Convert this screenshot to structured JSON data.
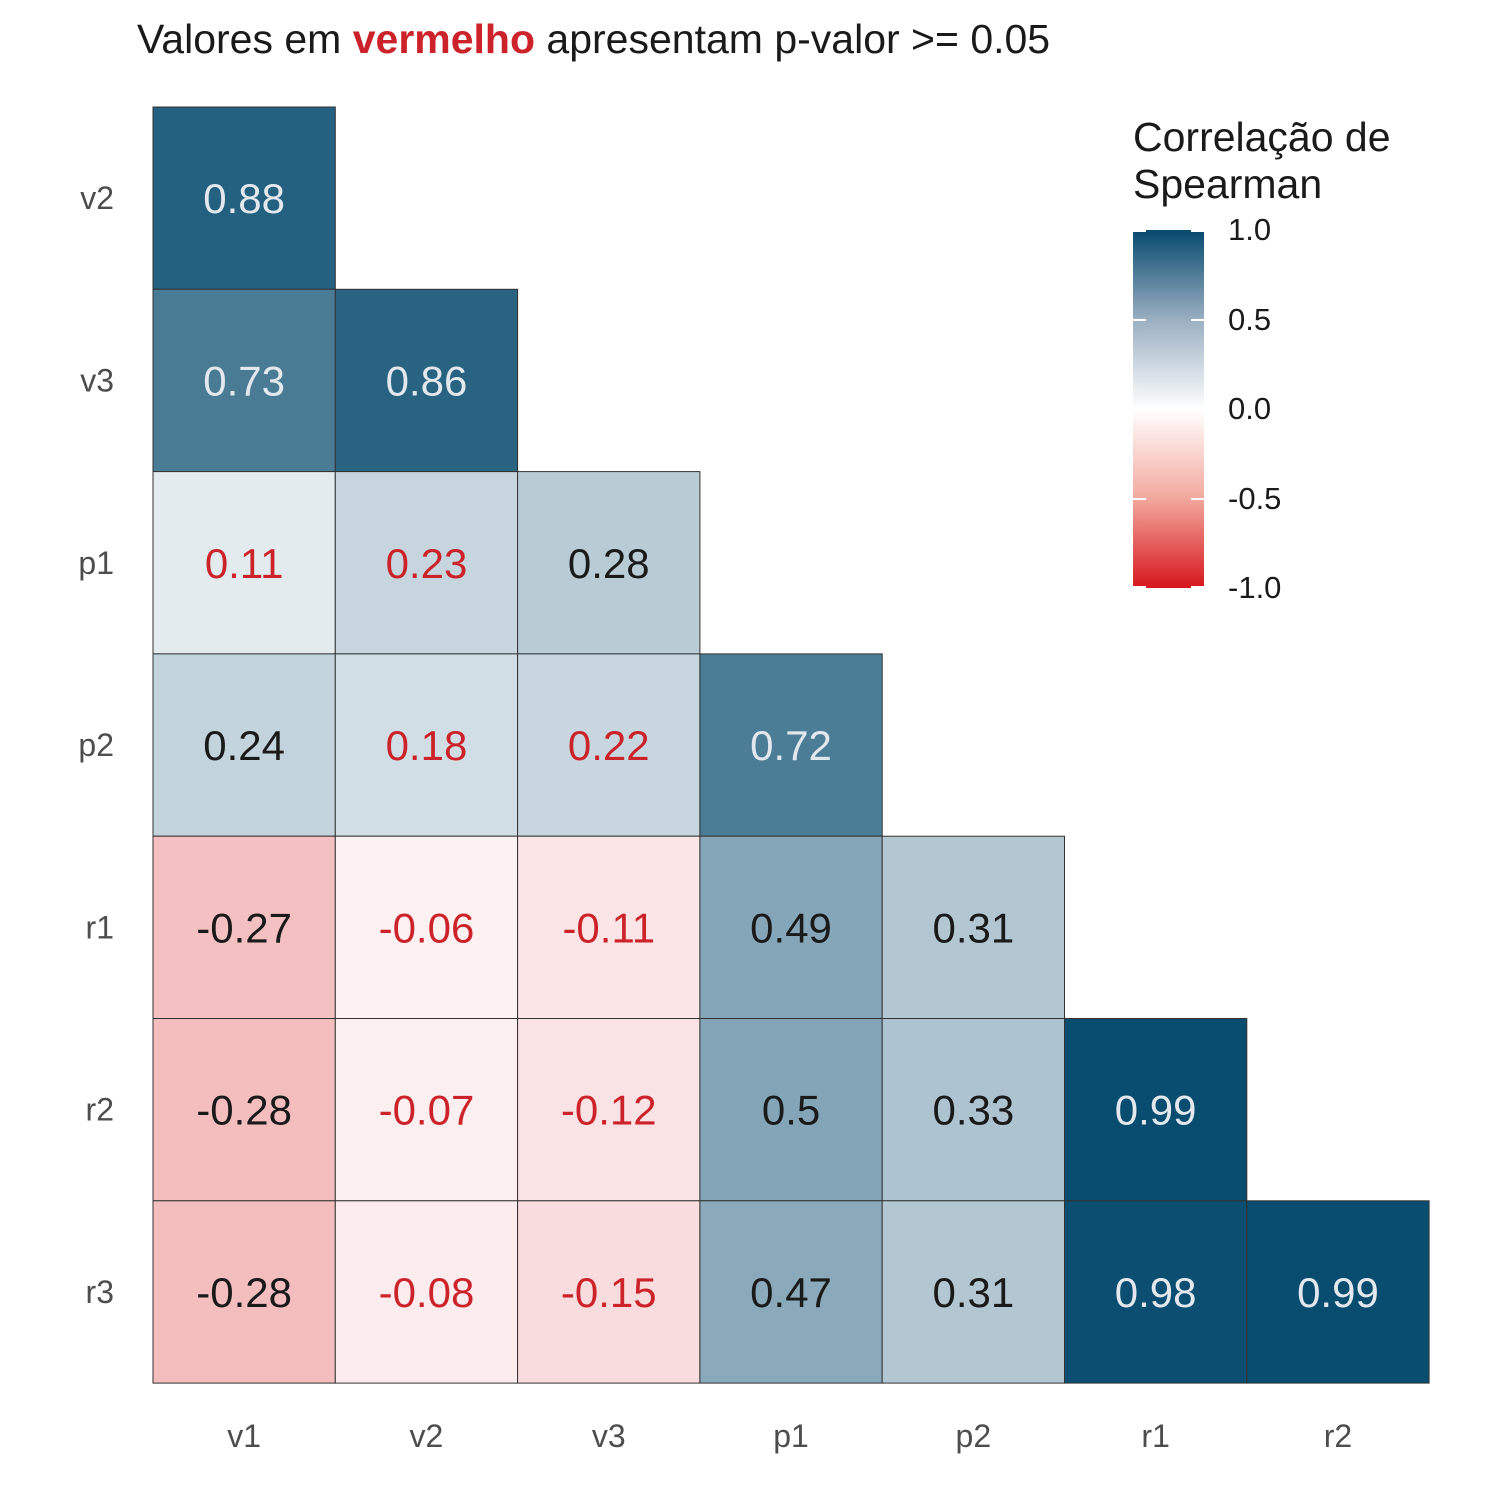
{
  "title": {
    "prefix": "Valores em ",
    "highlight": "vermelho",
    "suffix": " apresentam p-valor >= 0.05"
  },
  "colors": {
    "positive_max": "#064a6e",
    "zero": "#ffffff",
    "negative_max": "#d7161c",
    "nonsignificant_text": "#cc2229",
    "dark_text": "#1a1a1a",
    "light_text": "#e3e8ee",
    "axis_text": "#4d4d4d",
    "cell_border": "#333333"
  },
  "legend": {
    "title_line1": "Correlação de",
    "title_line2": "Spearman",
    "ticks": [
      "1.0",
      "0.5",
      "0.0",
      "-0.5",
      "-1.0"
    ],
    "tick_values": [
      1.0,
      0.5,
      0.0,
      -0.5,
      -1.0
    ],
    "limits": [
      -1,
      1
    ]
  },
  "chart_data": {
    "type": "heatmap",
    "title": "Valores em vermelho apresentam p-valor >= 0.05",
    "x_labels": [
      "v1",
      "v2",
      "v3",
      "p1",
      "p2",
      "r1",
      "r2"
    ],
    "y_labels": [
      "v2",
      "v3",
      "p1",
      "p2",
      "r1",
      "r2",
      "r3"
    ],
    "legend_title": "Correlação de Spearman",
    "legend_placement": "top-right",
    "grid": false,
    "cells": [
      {
        "x": "v1",
        "y": "v2",
        "value": 0.88,
        "label": "0.88",
        "significant": true
      },
      {
        "x": "v1",
        "y": "v3",
        "value": 0.73,
        "label": "0.73",
        "significant": true
      },
      {
        "x": "v2",
        "y": "v3",
        "value": 0.86,
        "label": "0.86",
        "significant": true
      },
      {
        "x": "v1",
        "y": "p1",
        "value": 0.11,
        "label": "0.11",
        "significant": false
      },
      {
        "x": "v2",
        "y": "p1",
        "value": 0.23,
        "label": "0.23",
        "significant": false
      },
      {
        "x": "v3",
        "y": "p1",
        "value": 0.28,
        "label": "0.28",
        "significant": true
      },
      {
        "x": "v1",
        "y": "p2",
        "value": 0.24,
        "label": "0.24",
        "significant": true
      },
      {
        "x": "v2",
        "y": "p2",
        "value": 0.18,
        "label": "0.18",
        "significant": false
      },
      {
        "x": "v3",
        "y": "p2",
        "value": 0.22,
        "label": "0.22",
        "significant": false
      },
      {
        "x": "p1",
        "y": "p2",
        "value": 0.72,
        "label": "0.72",
        "significant": true
      },
      {
        "x": "v1",
        "y": "r1",
        "value": -0.27,
        "label": "-0.27",
        "significant": true
      },
      {
        "x": "v2",
        "y": "r1",
        "value": -0.06,
        "label": "-0.06",
        "significant": false
      },
      {
        "x": "v3",
        "y": "r1",
        "value": -0.11,
        "label": "-0.11",
        "significant": false
      },
      {
        "x": "p1",
        "y": "r1",
        "value": 0.49,
        "label": "0.49",
        "significant": true
      },
      {
        "x": "p2",
        "y": "r1",
        "value": 0.31,
        "label": "0.31",
        "significant": true
      },
      {
        "x": "v1",
        "y": "r2",
        "value": -0.28,
        "label": "-0.28",
        "significant": true
      },
      {
        "x": "v2",
        "y": "r2",
        "value": -0.07,
        "label": "-0.07",
        "significant": false
      },
      {
        "x": "v3",
        "y": "r2",
        "value": -0.12,
        "label": "-0.12",
        "significant": false
      },
      {
        "x": "p1",
        "y": "r2",
        "value": 0.5,
        "label": "0.5",
        "significant": true
      },
      {
        "x": "p2",
        "y": "r2",
        "value": 0.33,
        "label": "0.33",
        "significant": true
      },
      {
        "x": "r1",
        "y": "r2",
        "value": 0.99,
        "label": "0.99",
        "significant": true
      },
      {
        "x": "v1",
        "y": "r3",
        "value": -0.28,
        "label": "-0.28",
        "significant": true
      },
      {
        "x": "v2",
        "y": "r3",
        "value": -0.08,
        "label": "-0.08",
        "significant": false
      },
      {
        "x": "v3",
        "y": "r3",
        "value": -0.15,
        "label": "-0.15",
        "significant": false
      },
      {
        "x": "p1",
        "y": "r3",
        "value": 0.47,
        "label": "0.47",
        "significant": true
      },
      {
        "x": "p2",
        "y": "r3",
        "value": 0.31,
        "label": "0.31",
        "significant": true
      },
      {
        "x": "r1",
        "y": "r3",
        "value": 0.98,
        "label": "0.98",
        "significant": true
      },
      {
        "x": "r2",
        "y": "r3",
        "value": 0.99,
        "label": "0.99",
        "significant": true
      }
    ]
  }
}
